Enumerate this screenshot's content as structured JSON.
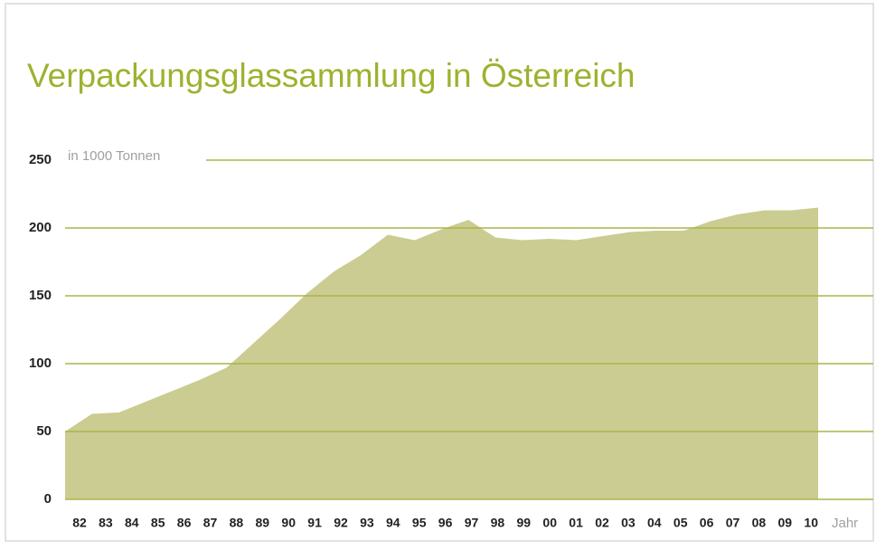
{
  "chart_data": {
    "type": "area",
    "title": "Verpackungsglassammlung in Österreich",
    "y_label": "in 1000 Tonnen",
    "x_label": "Jahr",
    "categories": [
      "82",
      "83",
      "84",
      "85",
      "86",
      "87",
      "88",
      "89",
      "90",
      "91",
      "92",
      "93",
      "94",
      "95",
      "96",
      "97",
      "98",
      "99",
      "00",
      "01",
      "02",
      "03",
      "04",
      "05",
      "06",
      "07",
      "08",
      "09",
      "10"
    ],
    "values": [
      50,
      63,
      64,
      72,
      80,
      88,
      97,
      115,
      133,
      152,
      168,
      180,
      195,
      191,
      199,
      206,
      193,
      191,
      192,
      191,
      194,
      197,
      198,
      198,
      205,
      210,
      213,
      213,
      215
    ],
    "color": "#cbcc91",
    "grid_color": "#a9b548",
    "ylim": [
      0,
      250
    ],
    "yticks": [
      0,
      50,
      100,
      150,
      200,
      250
    ],
    "grid": true
  }
}
